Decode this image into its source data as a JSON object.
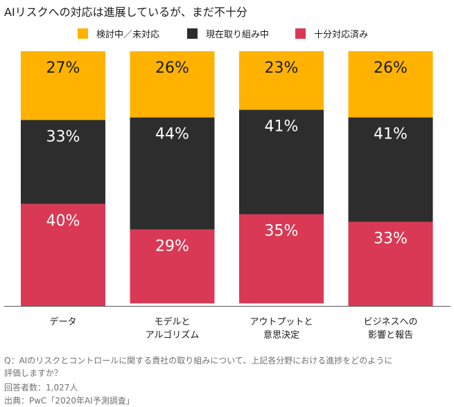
{
  "title": "AIリスクへの対応は進展しているが、まだ不十分",
  "chart_data": {
    "type": "bar",
    "stacked": true,
    "orientation": "vertical",
    "categories": [
      [
        "データ"
      ],
      [
        "モデルと",
        "アルゴリズム"
      ],
      [
        "アウトプットと",
        "意思決定"
      ],
      [
        "ビジネスへの",
        "影響と報告"
      ]
    ],
    "series": [
      {
        "name": "検討中／未対応",
        "color": "#FFB300",
        "values": [
          27,
          26,
          23,
          26
        ],
        "labels": [
          "27%",
          "26%",
          "23%",
          "26%"
        ]
      },
      {
        "name": "現在取り組み中",
        "color": "#2D2D2D",
        "values": [
          33,
          44,
          41,
          41
        ],
        "labels": [
          "33%",
          "44%",
          "41%",
          "41%"
        ]
      },
      {
        "name": "十分対応済み",
        "color": "#D93954",
        "values": [
          40,
          29,
          35,
          33
        ],
        "labels": [
          "40%",
          "29%",
          "35%",
          "33%"
        ]
      }
    ],
    "ylim": [
      0,
      100
    ],
    "legend_position": "top",
    "grid": false
  },
  "notes": [
    "Q：AIのリスクとコントロールに関する貴社の取り組みについて、上記各分野における進捗をどのように",
    "評価しますか？",
    "回答者数：1,027人",
    "出典：PwC「2020年AI予測調査」"
  ]
}
